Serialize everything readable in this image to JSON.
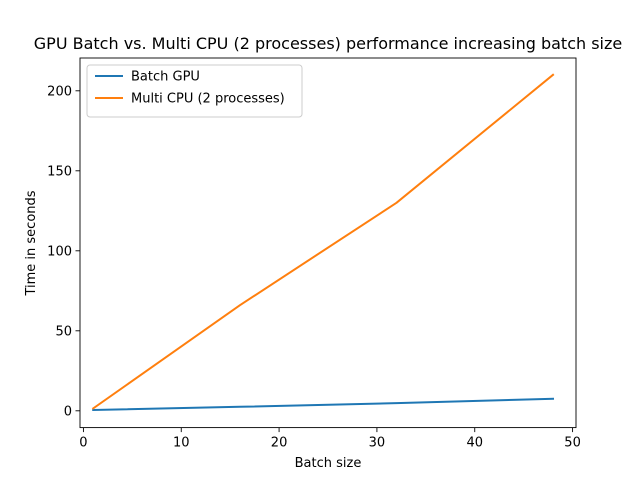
{
  "chart_data": {
    "type": "line",
    "title": "GPU Batch vs. Multi CPU (2 processes) performance increasing batch size",
    "xlabel": "Batch size",
    "ylabel": "Time in seconds",
    "xlim": [
      -0.35,
      50.35
    ],
    "ylim": [
      -10.5,
      220.5
    ],
    "xticks": [
      0,
      10,
      20,
      30,
      40,
      50
    ],
    "yticks": [
      0,
      50,
      100,
      150,
      200
    ],
    "x": [
      1,
      16,
      32,
      48
    ],
    "series": [
      {
        "name": "Batch GPU",
        "color": "#1f77b4",
        "values": [
          0.5,
          2.5,
          4.8,
          7.5
        ]
      },
      {
        "name": "Multi CPU (2 processes)",
        "color": "#ff7f0e",
        "values": [
          1.5,
          66,
          130,
          210
        ]
      }
    ],
    "legend_position": "upper-left",
    "grid": false
  }
}
